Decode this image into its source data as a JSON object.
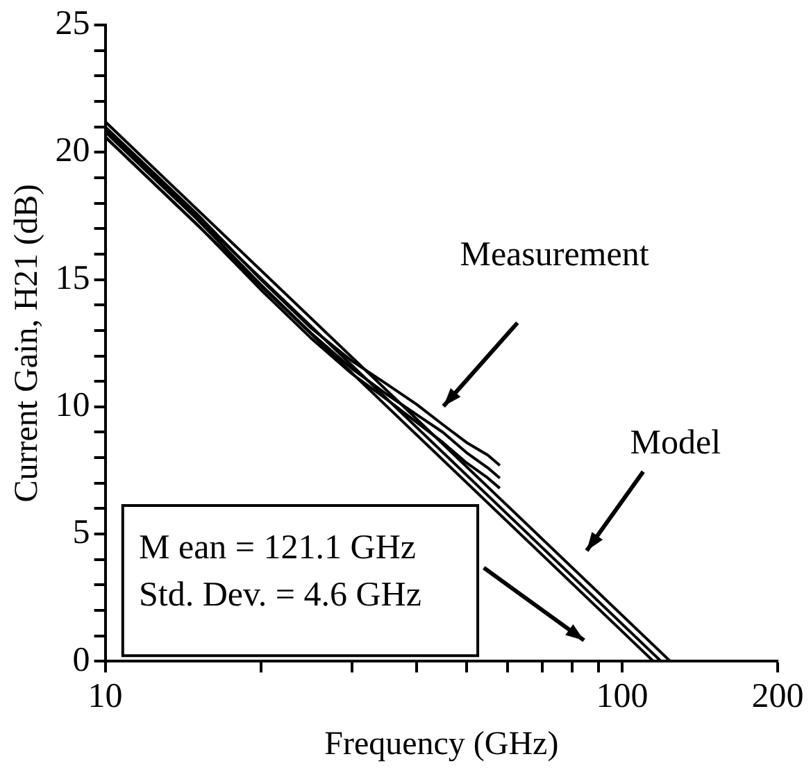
{
  "chart_data": {
    "type": "line",
    "xlabel": "Frequency (GHz)",
    "ylabel": "Current Gain, H21 (dB)",
    "log": "x",
    "xlim": [
      10,
      200
    ],
    "ylim": [
      0,
      25
    ],
    "xticks": [
      10,
      {
        "value": 20,
        "label": null
      },
      {
        "value": 30,
        "label": null
      },
      {
        "value": 40,
        "label": null
      },
      {
        "value": 50,
        "label": null
      },
      {
        "value": 60,
        "label": null
      },
      {
        "value": 70,
        "label": null
      },
      {
        "value": 80,
        "label": null
      },
      {
        "value": 90,
        "label": null
      },
      100,
      200
    ],
    "yticks": [
      0,
      {
        "value": 1,
        "label": null
      },
      {
        "value": 2,
        "label": null
      },
      {
        "value": 3,
        "label": null
      },
      {
        "value": 4,
        "label": null
      },
      5,
      {
        "value": 6,
        "label": null
      },
      {
        "value": 7,
        "label": null
      },
      {
        "value": 8,
        "label": null
      },
      {
        "value": 9,
        "label": null
      },
      10,
      {
        "value": 11,
        "label": null
      },
      {
        "value": 12,
        "label": null
      },
      {
        "value": 13,
        "label": null
      },
      {
        "value": 14,
        "label": null
      },
      15,
      {
        "value": 16,
        "label": null
      },
      {
        "value": 17,
        "label": null
      },
      {
        "value": 18,
        "label": null
      },
      {
        "value": 19,
        "label": null
      },
      20,
      {
        "value": 21,
        "label": null
      },
      {
        "value": 22,
        "label": null
      },
      {
        "value": 23,
        "label": null
      },
      {
        "value": 24,
        "label": null
      },
      25
    ],
    "grid": false,
    "legend": false,
    "marker": "none",
    "line_style": "solid",
    "series": [
      {
        "color": "#000000",
        "x": [
          10,
          15,
          20,
          25,
          30,
          35,
          40,
          45,
          50,
          55,
          58
        ],
        "values": [
          21.0,
          17.6,
          15.0,
          13.1,
          11.8,
          10.9,
          10.1,
          9.3,
          8.6,
          8.1,
          7.7
        ]
      },
      {
        "color": "#000000",
        "x": [
          10,
          15,
          20,
          25,
          30,
          35,
          40,
          45,
          50,
          55,
          58
        ],
        "values": [
          20.8,
          17.4,
          14.8,
          12.9,
          11.5,
          10.5,
          9.7,
          9.0,
          8.2,
          7.6,
          7.2
        ]
      },
      {
        "color": "#000000",
        "x": [
          10,
          15,
          20,
          25,
          30,
          35,
          40,
          45,
          50,
          55,
          58
        ],
        "values": [
          20.6,
          17.2,
          14.6,
          12.7,
          11.3,
          10.3,
          9.4,
          8.6,
          7.8,
          7.2,
          6.8
        ]
      },
      {
        "color": "#000000",
        "x": [
          10,
          124
        ],
        "values": [
          21.2,
          0
        ]
      },
      {
        "color": "#000000",
        "x": [
          10,
          119
        ],
        "values": [
          20.9,
          0
        ]
      },
      {
        "color": "#000000",
        "x": [
          10,
          115
        ],
        "values": [
          20.6,
          0
        ]
      }
    ],
    "annotations": [
      "Measurement",
      "Model",
      "M ean = 121.1 GHz",
      "Std. Dev. = 4.6 GHz"
    ]
  }
}
